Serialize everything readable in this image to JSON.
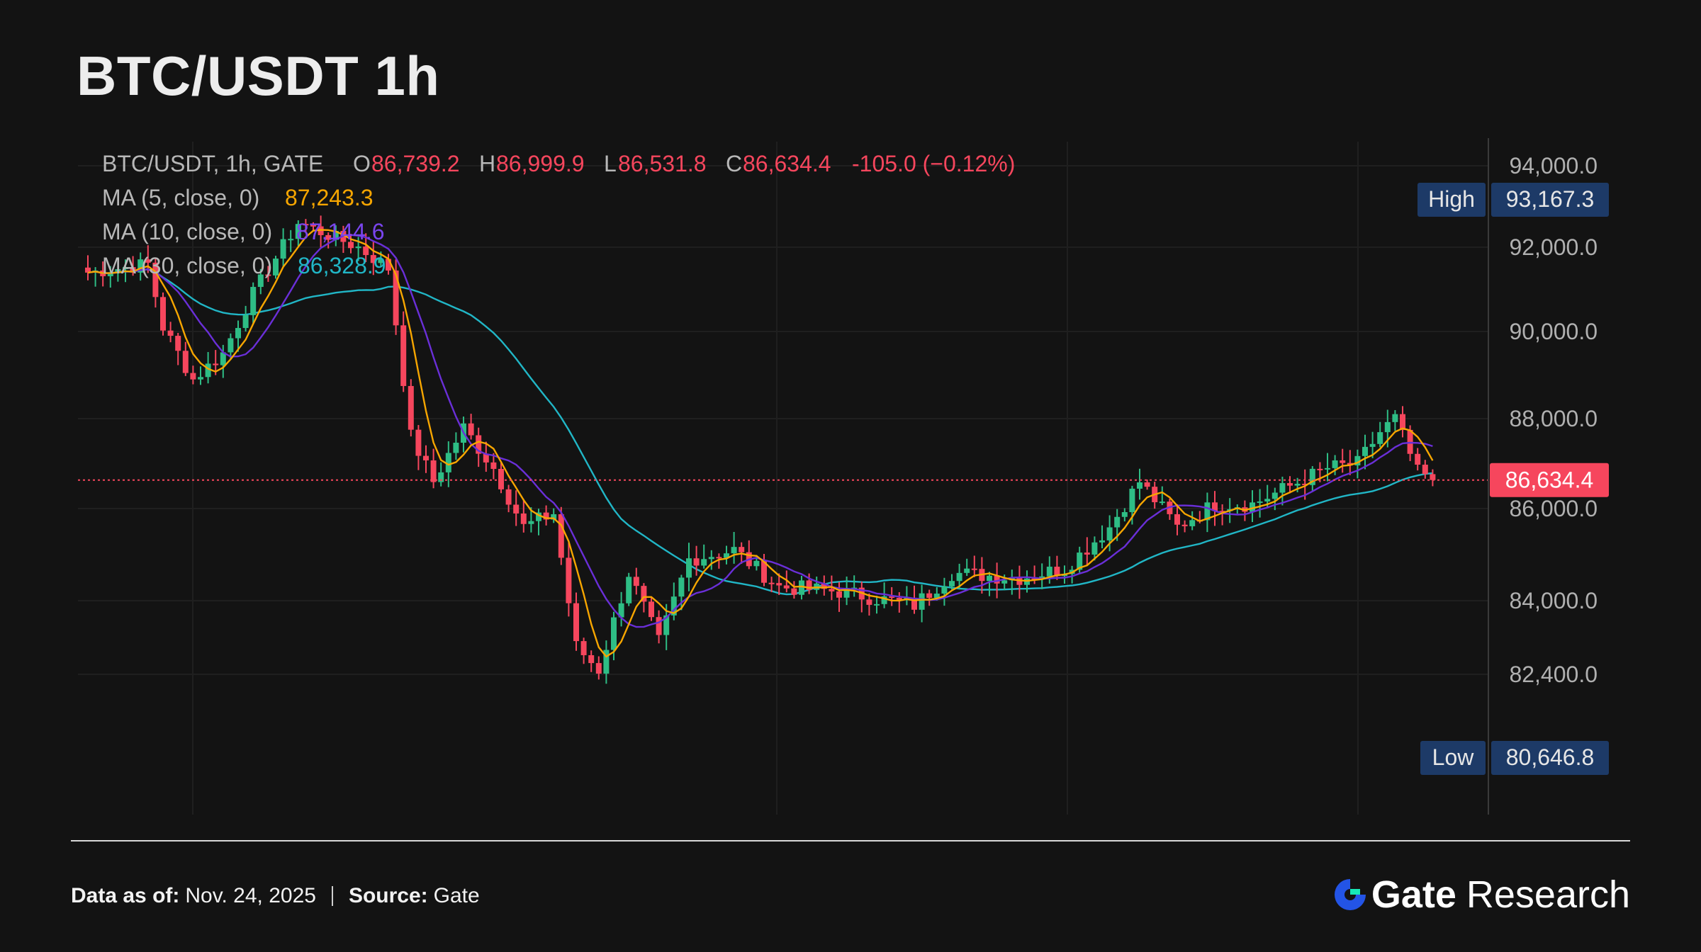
{
  "title": "BTC/USDT 1h",
  "legend": {
    "symbol": "BTC/USDT, 1h, GATE",
    "o_label": "O",
    "o_value": "86,739.2",
    "h_label": "H",
    "h_value": "86,999.9",
    "l_label": "L",
    "l_value": "86,531.8",
    "c_label": "C",
    "c_value": "86,634.4",
    "change": "-105.0 (−0.12%)",
    "ma5_label": "MA (5, close, 0)",
    "ma5_value": "87,243.3",
    "ma10_label": "MA (10, close, 0)",
    "ma10_value": "87,144.6",
    "ma30_label": "MA (30, close, 0)",
    "ma30_value": "86,328.9"
  },
  "colors": {
    "background": "#131313",
    "up": "#2ebd85",
    "down": "#f6465d",
    "ma5": "#f7a600",
    "ma10": "#6a2fd8",
    "ma30": "#21b6c6",
    "label_box": "#1d3a67"
  },
  "footer": {
    "data_as_of_label": "Data as of:",
    "data_as_of_value": "Nov. 24, 2025",
    "source_label": "Source:",
    "source_value": "Gate",
    "brand_gate": "Gate",
    "brand_research": "Research"
  },
  "chart_data": {
    "type": "candlestick",
    "title": "BTC/USDT 1h",
    "y_ticks": [
      "94,000.0",
      "92,000.0",
      "90,000.0",
      "88,000.0",
      "86,000.0",
      "84,000.0",
      "82,400.0"
    ],
    "y_tick_values": [
      94000,
      92000,
      90000,
      88000,
      86000,
      84000,
      82400
    ],
    "ylim": [
      80000,
      94600
    ],
    "grid": true,
    "high_label": "High",
    "high_value": 93167.3,
    "high_text": "93,167.3",
    "low_label": "Low",
    "low_value": 80646.8,
    "low_text": "80,646.8",
    "last_price": 86634.4,
    "last_price_text": "86,634.4",
    "close_path": [
      [
        0,
        91400
      ],
      [
        8,
        91600
      ],
      [
        10,
        90100
      ],
      [
        14,
        88900
      ],
      [
        18,
        89500
      ],
      [
        22,
        90900
      ],
      [
        28,
        92600
      ],
      [
        36,
        92000
      ],
      [
        40,
        91500
      ],
      [
        43,
        87600
      ],
      [
        46,
        86600
      ],
      [
        50,
        87800
      ],
      [
        54,
        86900
      ],
      [
        58,
        85600
      ],
      [
        62,
        85900
      ],
      [
        65,
        83000
      ],
      [
        68,
        82500
      ],
      [
        72,
        84600
      ],
      [
        76,
        83100
      ],
      [
        80,
        84900
      ],
      [
        86,
        85100
      ],
      [
        92,
        84300
      ],
      [
        100,
        84200
      ],
      [
        110,
        83900
      ],
      [
        115,
        84600
      ],
      [
        124,
        84500
      ],
      [
        130,
        84700
      ],
      [
        136,
        85600
      ],
      [
        140,
        86600
      ],
      [
        145,
        85600
      ],
      [
        150,
        86100
      ],
      [
        155,
        86100
      ],
      [
        160,
        86500
      ],
      [
        165,
        86900
      ],
      [
        169,
        87000
      ],
      [
        172,
        87700
      ],
      [
        174,
        88000
      ],
      [
        177,
        86800
      ],
      [
        179,
        86634
      ]
    ]
  }
}
